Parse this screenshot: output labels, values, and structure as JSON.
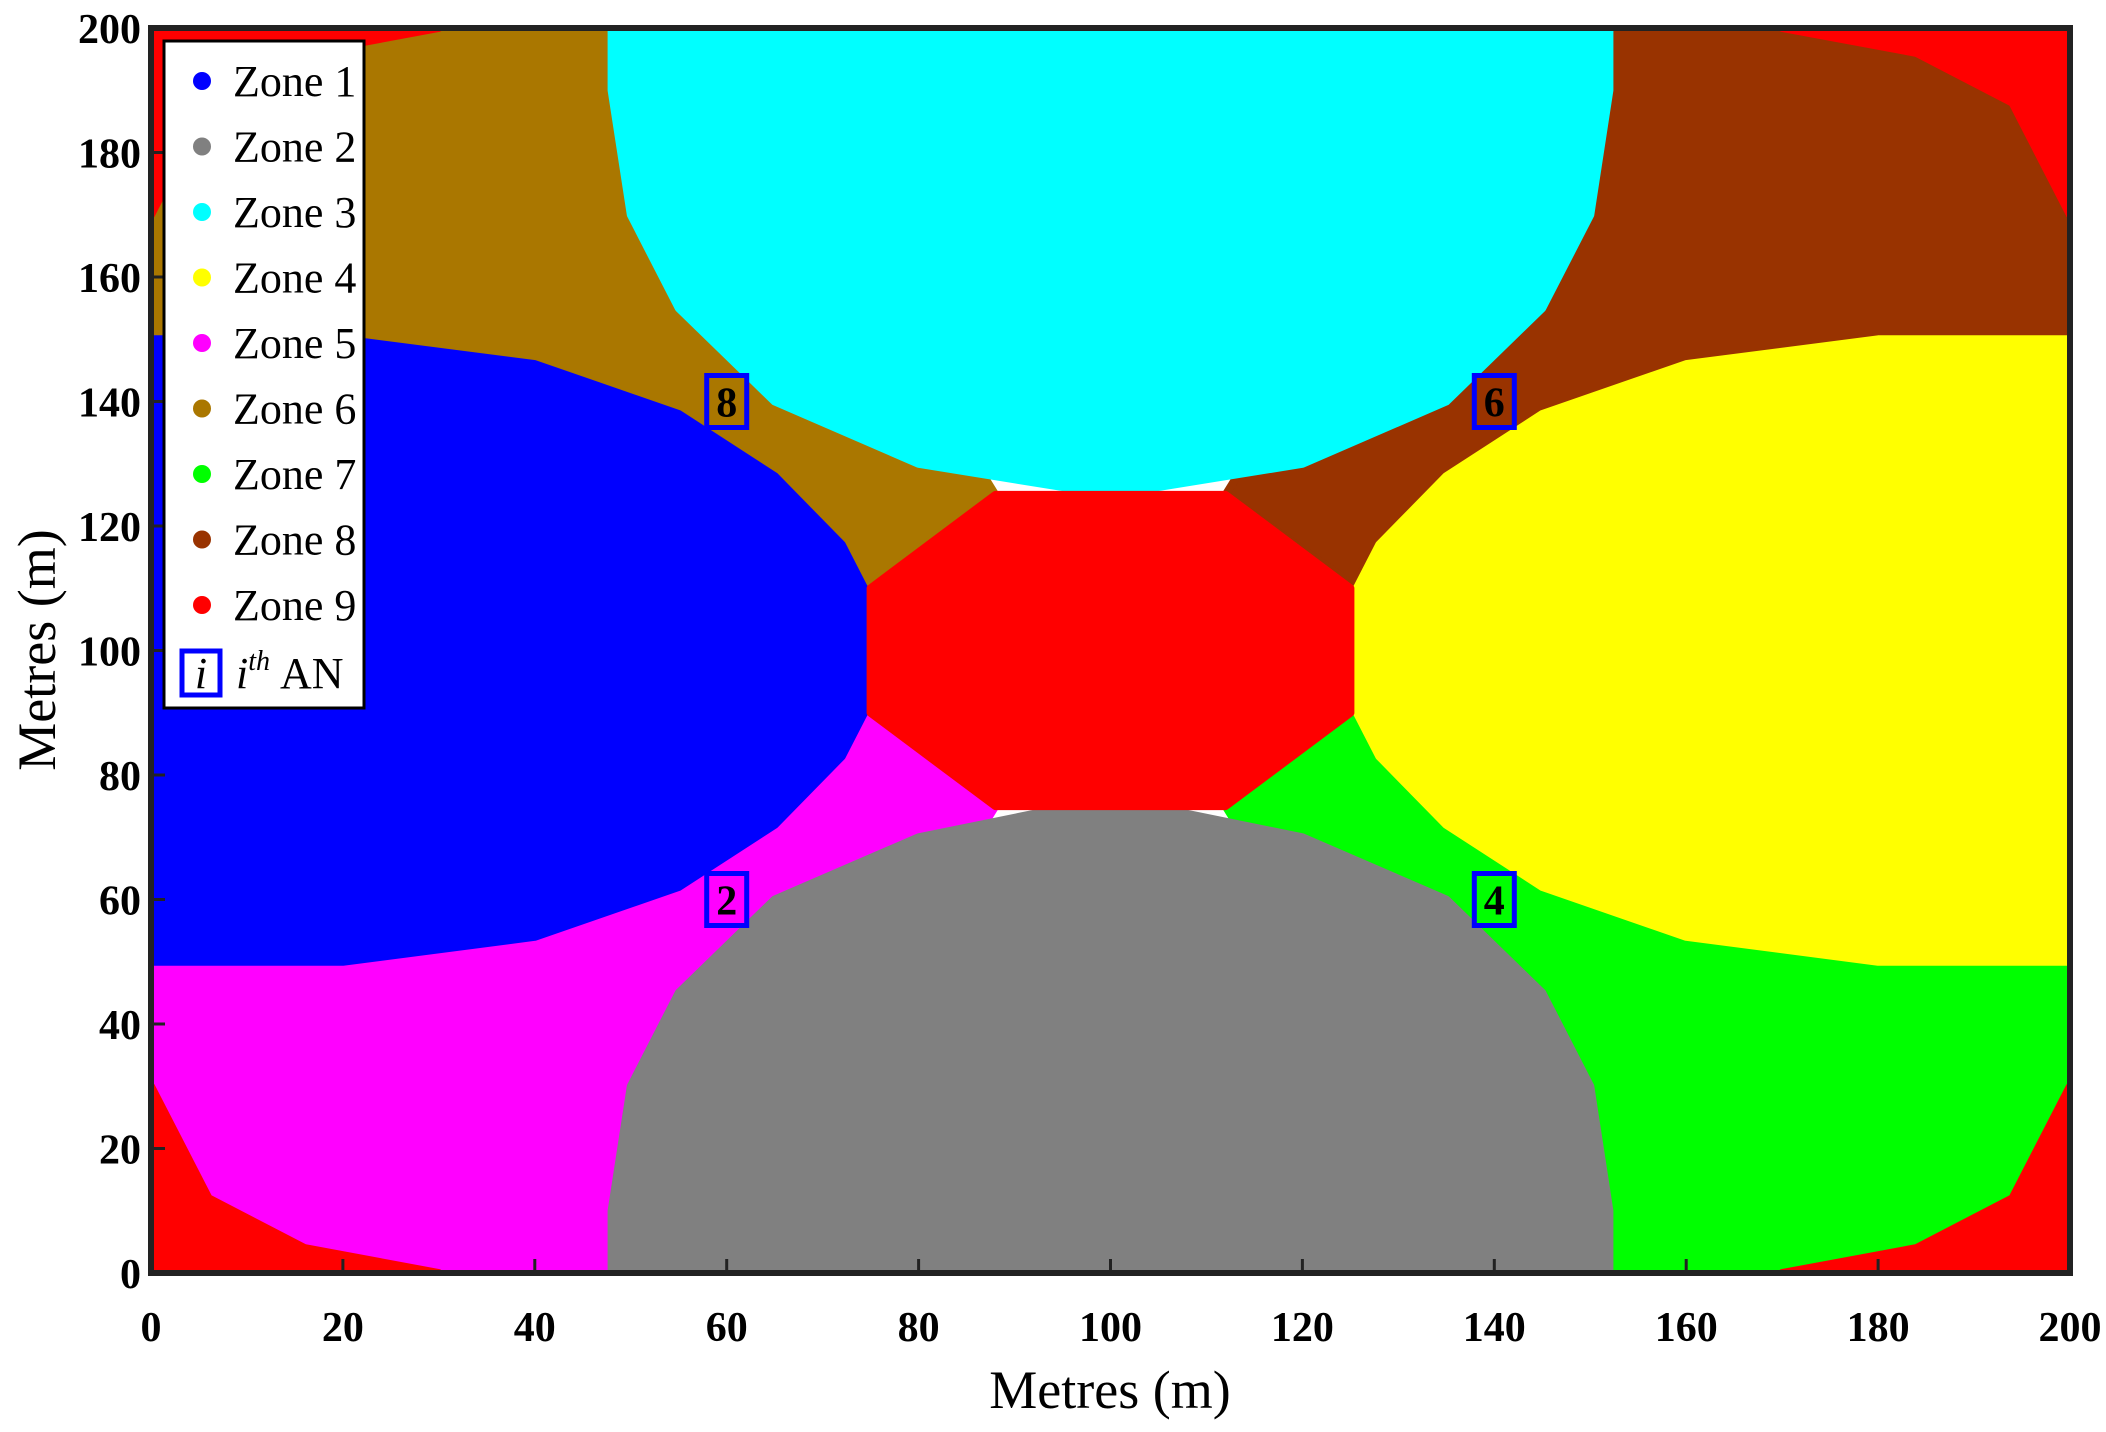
{
  "chart_data": {
    "type": "scatter",
    "title": "",
    "xlabel": "Metres (m)",
    "ylabel": "Metres (m)",
    "xlim": [
      0,
      200
    ],
    "ylim": [
      0,
      200
    ],
    "x_ticks": [
      "0",
      "20",
      "40",
      "60",
      "80",
      "100",
      "120",
      "140",
      "160",
      "180",
      "200"
    ],
    "y_ticks": [
      "0",
      "20",
      "40",
      "60",
      "80",
      "100",
      "120",
      "140",
      "160",
      "180",
      "200"
    ],
    "grid": false,
    "legend_position": "top-left",
    "zones": [
      {
        "name": "Zone 1",
        "color": "#0000ff"
      },
      {
        "name": "Zone 2",
        "color": "#808080"
      },
      {
        "name": "Zone 3",
        "color": "#00ffff"
      },
      {
        "name": "Zone 4",
        "color": "#ffff00"
      },
      {
        "name": "Zone 5",
        "color": "#ff00ff"
      },
      {
        "name": "Zone 6",
        "color": "#aa7700"
      },
      {
        "name": "Zone 7",
        "color": "#00ff00"
      },
      {
        "name": "Zone 8",
        "color": "#993300"
      },
      {
        "name": "Zone 9",
        "color": "#ff0000"
      }
    ],
    "an_legend": {
      "symbol": "i",
      "label_sup": "th",
      "label_text": "AN",
      "color": "#0000ff"
    },
    "anchor_nodes": [
      {
        "label": "8",
        "x": 60,
        "y": 140
      },
      {
        "label": "6",
        "x": 140,
        "y": 140
      },
      {
        "label": "2",
        "x": 60,
        "y": 60
      },
      {
        "label": "4",
        "x": 140,
        "y": 60
      }
    ]
  }
}
